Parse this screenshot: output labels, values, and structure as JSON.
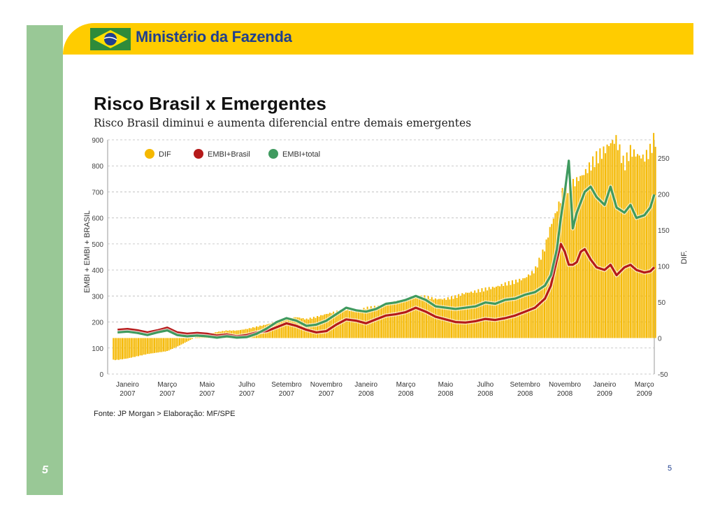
{
  "header": {
    "ministry": "Ministério da Fazenda",
    "colors": {
      "band": "#ffcc00",
      "side": "#99c896",
      "title": "#1f3f8f"
    }
  },
  "slide": {
    "title": "Risco Brasil x Emergentes",
    "subtitle": "Risco Brasil diminui e aumenta diferencial entre demais emergentes",
    "source": "Fonte: JP Morgan > Elaboração: MF/SPE",
    "page_number_left": "5",
    "page_number_right": "5"
  },
  "chart_data": {
    "type": "line",
    "title": "",
    "ylabel": "EMBI + EMBI + BRASIL",
    "y2label": "DIF.",
    "ylim": [
      0,
      900
    ],
    "y2lim": [
      -50,
      275
    ],
    "yticks": [
      0,
      100,
      200,
      300,
      400,
      500,
      600,
      700,
      800,
      900
    ],
    "y2ticks": [
      -50,
      0,
      50,
      100,
      150,
      200,
      250
    ],
    "xlim": [
      0,
      27.5
    ],
    "xticks": [
      {
        "pos": 1,
        "line1": "Janeiro",
        "line2": "2007"
      },
      {
        "pos": 3,
        "line1": "Março",
        "line2": "2007"
      },
      {
        "pos": 5,
        "line1": "Maio",
        "line2": "2007"
      },
      {
        "pos": 7,
        "line1": "Julho",
        "line2": "2007"
      },
      {
        "pos": 9,
        "line1": "Setembro",
        "line2": "2007"
      },
      {
        "pos": 11,
        "line1": "Novembro",
        "line2": "2007"
      },
      {
        "pos": 13,
        "line1": "Janeiro",
        "line2": "2008"
      },
      {
        "pos": 15,
        "line1": "Março",
        "line2": "2008"
      },
      {
        "pos": 17,
        "line1": "Maio",
        "line2": "2008"
      },
      {
        "pos": 19,
        "line1": "Julho",
        "line2": "2008"
      },
      {
        "pos": 21,
        "line1": "Setembro",
        "line2": "2008"
      },
      {
        "pos": 23,
        "line1": "Novembro",
        "line2": "2008"
      },
      {
        "pos": 25,
        "line1": "Janeiro",
        "line2": "2009"
      },
      {
        "pos": 27,
        "line1": "Março",
        "line2": "2009"
      }
    ],
    "legend": [
      {
        "name": "DIF",
        "color": "#f5b800"
      },
      {
        "name": "EMBI+Brasil",
        "color": "#b51a1a"
      },
      {
        "name": "EMBI+total",
        "color": "#3f9a5f"
      }
    ],
    "series": [
      {
        "name": "EMBI+Brasil",
        "color": "#b51a1a",
        "axis": "left",
        "x": [
          0.5,
          1,
          1.5,
          2,
          2.5,
          3,
          3.5,
          4,
          4.5,
          5,
          5.5,
          6,
          6.5,
          7,
          7.5,
          8,
          8.5,
          9,
          9.5,
          10,
          10.5,
          11,
          11.5,
          12,
          12.5,
          13,
          13.5,
          14,
          14.5,
          15,
          15.5,
          16,
          16.5,
          17,
          17.5,
          18,
          18.5,
          19,
          19.5,
          20,
          20.5,
          21,
          21.5,
          22,
          22.3,
          22.6,
          22.8,
          23,
          23.2,
          23.4,
          23.6,
          23.8,
          24,
          24.3,
          24.6,
          25,
          25.3,
          25.6,
          26,
          26.3,
          26.6,
          27,
          27.3,
          27.5
        ],
        "y": [
          170,
          173,
          168,
          160,
          168,
          178,
          160,
          155,
          158,
          155,
          148,
          152,
          145,
          150,
          160,
          165,
          180,
          195,
          185,
          170,
          160,
          165,
          190,
          210,
          205,
          195,
          210,
          225,
          230,
          238,
          255,
          240,
          220,
          210,
          200,
          198,
          203,
          212,
          208,
          215,
          225,
          240,
          255,
          290,
          340,
          440,
          500,
          470,
          420,
          420,
          430,
          470,
          480,
          440,
          410,
          400,
          420,
          380,
          410,
          420,
          400,
          390,
          395,
          410
        ]
      },
      {
        "name": "EMBI+total",
        "color": "#3f9a5f",
        "axis": "left",
        "x": [
          0.5,
          1,
          1.5,
          2,
          2.5,
          3,
          3.5,
          4,
          4.5,
          5,
          5.5,
          6,
          6.5,
          7,
          7.5,
          8,
          8.5,
          9,
          9.5,
          10,
          10.5,
          11,
          11.5,
          12,
          12.5,
          13,
          13.5,
          14,
          14.5,
          15,
          15.5,
          16,
          16.5,
          17,
          17.5,
          18,
          18.5,
          19,
          19.5,
          20,
          20.5,
          21,
          21.5,
          22,
          22.3,
          22.6,
          22.8,
          23,
          23.2,
          23.4,
          23.6,
          23.8,
          24,
          24.3,
          24.6,
          25,
          25.3,
          25.6,
          26,
          26.3,
          26.6,
          27,
          27.3,
          27.5
        ],
        "y": [
          160,
          163,
          158,
          150,
          160,
          168,
          150,
          145,
          148,
          145,
          140,
          145,
          140,
          142,
          155,
          175,
          200,
          215,
          205,
          185,
          190,
          205,
          230,
          255,
          245,
          240,
          250,
          270,
          275,
          285,
          300,
          285,
          260,
          255,
          250,
          255,
          260,
          275,
          270,
          285,
          290,
          305,
          315,
          340,
          380,
          480,
          600,
          700,
          820,
          560,
          620,
          660,
          700,
          720,
          680,
          650,
          720,
          640,
          620,
          650,
          600,
          610,
          640,
          690
        ]
      },
      {
        "name": "DIF",
        "color": "#f5b800",
        "axis": "right",
        "type": "bar",
        "x": [
          0.5,
          1,
          1.5,
          2,
          2.5,
          3,
          3.5,
          4,
          4.5,
          5,
          5.5,
          6,
          6.5,
          7,
          7.5,
          8,
          8.5,
          9,
          9.5,
          10,
          10.5,
          11,
          11.5,
          12,
          12.5,
          13,
          13.5,
          14,
          14.5,
          15,
          15.5,
          16,
          16.5,
          17,
          17.5,
          18,
          18.5,
          19,
          19.5,
          20,
          20.5,
          21,
          21.5,
          22,
          22.3,
          22.6,
          22.8,
          23,
          23.2,
          23.4,
          23.6,
          23.8,
          24,
          24.3,
          24.6,
          25,
          25.3,
          25.6,
          26,
          26.3,
          26.6,
          27,
          27.3,
          27.5
        ],
        "y": [
          -30,
          -28,
          -25,
          -22,
          -20,
          -18,
          -12,
          -5,
          2,
          5,
          8,
          10,
          10,
          12,
          15,
          18,
          22,
          25,
          28,
          25,
          28,
          32,
          35,
          38,
          35,
          40,
          42,
          45,
          48,
          50,
          55,
          55,
          52,
          52,
          55,
          60,
          62,
          65,
          68,
          72,
          75,
          80,
          90,
          120,
          150,
          170,
          185,
          205,
          200,
          205,
          210,
          215,
          220,
          230,
          240,
          250,
          260,
          265,
          230,
          250,
          245,
          240,
          250,
          265
        ]
      }
    ]
  }
}
